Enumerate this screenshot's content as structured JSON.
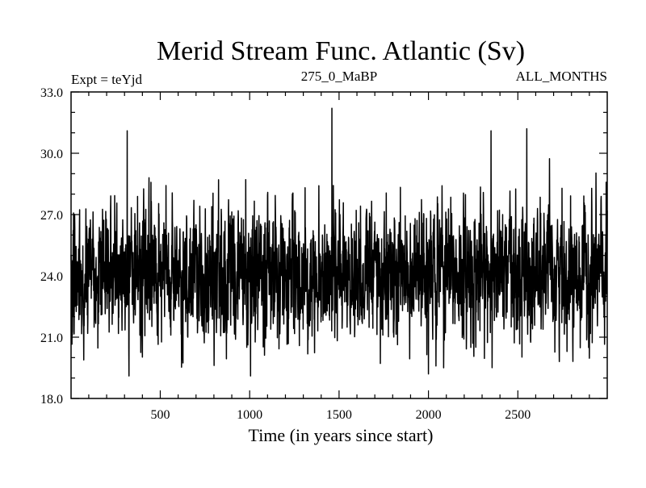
{
  "chart_data": {
    "type": "line",
    "title": "Merid Stream Func. Atlantic (Sv)",
    "subtitle_left": "Expt = teYjd",
    "subtitle_center": "275_0_MaBP",
    "subtitle_right": "ALL_MONTHS",
    "xlabel": "Time (in years since start)",
    "ylabel": "",
    "xlim": [
      1,
      3000
    ],
    "ylim": [
      18.0,
      33.0
    ],
    "xticks": [
      500,
      1000,
      1500,
      2000,
      2500
    ],
    "xtick_labels": [
      "500",
      "1000",
      "1500",
      "2000",
      "2500"
    ],
    "yticks": [
      18.0,
      21.0,
      24.0,
      27.0,
      30.0,
      33.0
    ],
    "ytick_labels": [
      "18.0",
      "21.0",
      "24.0",
      "27.0",
      "30.0",
      "33.0"
    ],
    "series": [
      {
        "name": "Merid Stream Func. Atlantic",
        "color": "#000000",
        "sampling": "annual means, years 1-3000 (noisy; mean ~24.1, range ~19.1-32.2)",
        "x_start": 1,
        "x_step": 1,
        "count": 3000,
        "mean": 24.1,
        "std": 1.6,
        "seed": 275,
        "extremes": [
          {
            "x": 315,
            "y": 31.1
          },
          {
            "x": 325,
            "y": 19.1
          },
          {
            "x": 1005,
            "y": 19.1
          },
          {
            "x": 1460,
            "y": 32.2
          },
          {
            "x": 2350,
            "y": 31.1
          },
          {
            "x": 2550,
            "y": 31.2
          },
          {
            "x": 2000,
            "y": 19.2
          }
        ]
      }
    ]
  }
}
